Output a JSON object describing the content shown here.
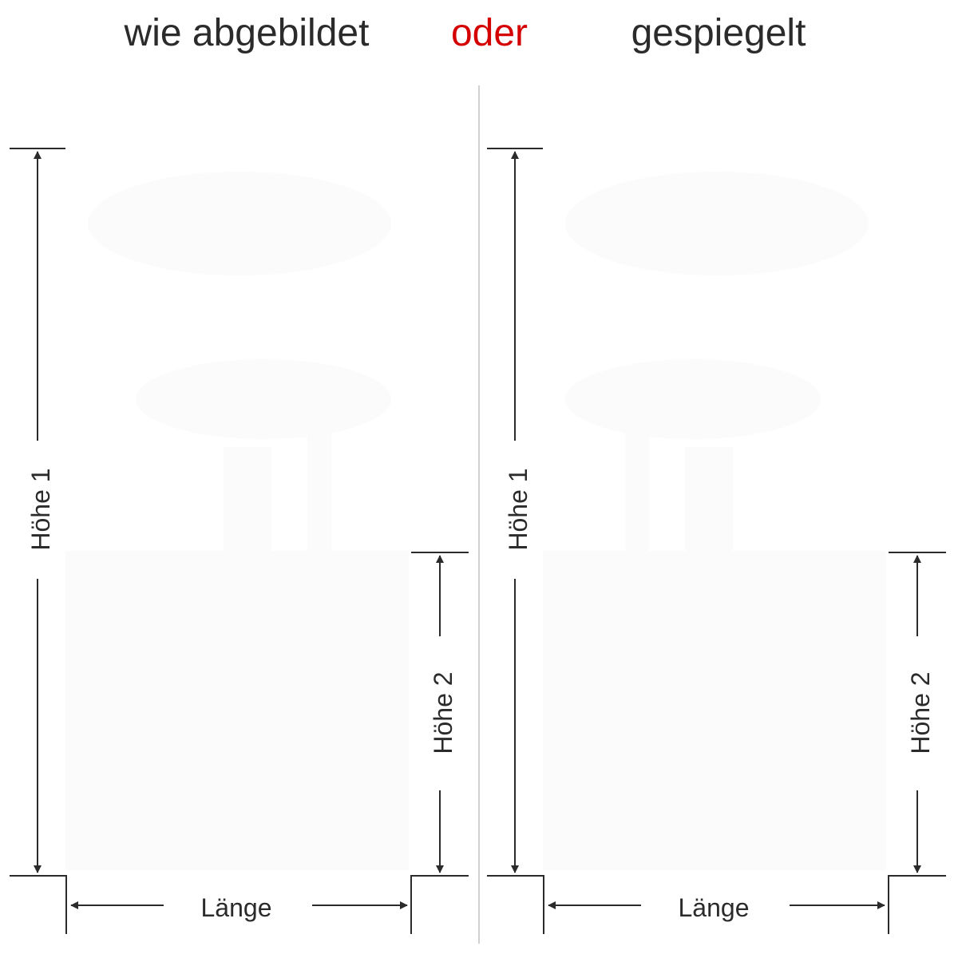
{
  "header": {
    "option_left": "wie abgebildet",
    "separator": "oder",
    "option_right": "gespiegelt"
  },
  "colors": {
    "text": "#2b2b2b",
    "accent": "#d40000",
    "divider": "#d0d0d0"
  },
  "panels": [
    {
      "height1_label": "Höhe 1",
      "height2_label": "Höhe 2",
      "length_label": "Länge",
      "orientation": "original"
    },
    {
      "height1_label": "Höhe 1",
      "height2_label": "Höhe 2",
      "length_label": "Länge",
      "orientation": "mirrored"
    }
  ]
}
